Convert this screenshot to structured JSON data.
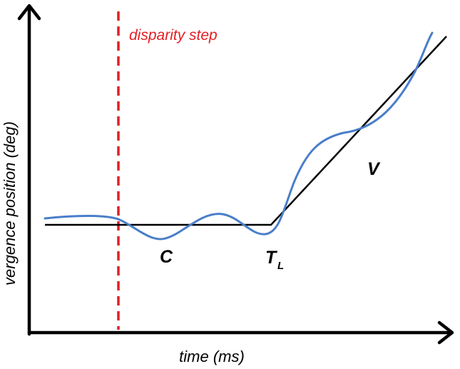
{
  "diagram": {
    "labels": {
      "x_axis": "time (ms)",
      "y_axis": "vergence position (deg)",
      "step": "disparity step",
      "C": "C",
      "T_main": "T",
      "T_sub": "L",
      "V": "V"
    },
    "colors": {
      "axis": "#000000",
      "step_line": "#e31e24",
      "model_line": "#000000",
      "response_curve": "#4a7ec9"
    }
  }
}
